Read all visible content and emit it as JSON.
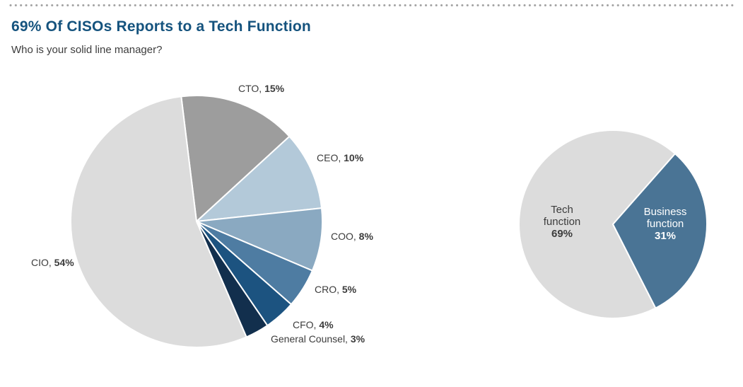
{
  "page": {
    "title": "69% Of CISOs Reports to a Tech Function",
    "subtitle": "Who is your solid line manager?"
  },
  "colors": {
    "title_blue": "#15537e",
    "label_gray": "#3c3c3c",
    "dotted_rule": "#a3a3a3",
    "pie_stroke": "#ffffff"
  },
  "chart_data": [
    {
      "type": "pie",
      "name": "solid-line-manager-breakdown",
      "title": "Who is your solid line manager?",
      "start_angle_deg": -7,
      "labels_position": "outside",
      "slices": [
        {
          "label": "CTO",
          "value": 15,
          "pct_display": "15%",
          "label_display": "CTO, ",
          "color": "#9d9d9d"
        },
        {
          "label": "CEO",
          "value": 10,
          "pct_display": "10%",
          "label_display": "CEO, ",
          "color": "#b3c9d9"
        },
        {
          "label": "COO",
          "value": 8,
          "pct_display": "8%",
          "label_display": "COO, ",
          "color": "#8aa9c1"
        },
        {
          "label": "CRO",
          "value": 5,
          "pct_display": "5%",
          "label_display": "CRO, ",
          "color": "#4e7ca2"
        },
        {
          "label": "CFO",
          "value": 4,
          "pct_display": "4%",
          "label_display": "CFO, ",
          "color": "#1c5380"
        },
        {
          "label": "General Counsel",
          "value": 3,
          "pct_display": "3%",
          "label_display": "General Counsel, ",
          "color": "#122f4d"
        },
        {
          "label": "CIO",
          "value": 54,
          "pct_display": "54%",
          "label_display": "CIO, ",
          "color": "#dcdcdc"
        }
      ]
    },
    {
      "type": "pie",
      "name": "tech-vs-business-function",
      "start_angle_deg": 153,
      "labels_position": "inside",
      "slices": [
        {
          "label": "Tech function",
          "value": 69,
          "pct_display": "69%",
          "color": "#dcdcdc",
          "text_color": "#3c3c3c"
        },
        {
          "label": "Business function",
          "value": 31,
          "pct_display": "31%",
          "color": "#4a7495",
          "text_color": "#ffffff"
        }
      ]
    }
  ]
}
